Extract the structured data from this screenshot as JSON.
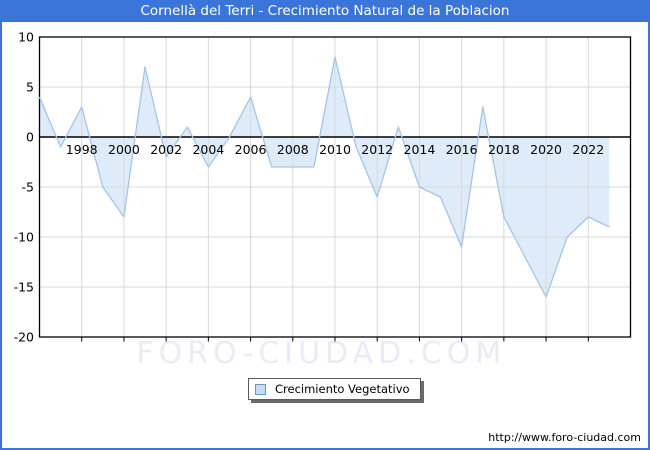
{
  "chart_data": {
    "type": "area",
    "title": "Cornellà del Terri - Crecimiento Natural de la Poblacion",
    "series_name": "Crecimiento Vegetativo",
    "x": [
      1996,
      1997,
      1998,
      1999,
      2000,
      2001,
      2002,
      2003,
      2004,
      2005,
      2006,
      2007,
      2008,
      2009,
      2010,
      2011,
      2012,
      2013,
      2014,
      2015,
      2016,
      2017,
      2018,
      2019,
      2020,
      2021,
      2022,
      2023
    ],
    "values": [
      4,
      -1,
      3,
      -5,
      -8,
      7,
      -2,
      1,
      -3,
      0,
      4,
      -3,
      -3,
      -3,
      8,
      -1,
      -6,
      1,
      -5,
      -6,
      -11,
      3,
      -8,
      -12,
      -16,
      -10,
      -8,
      -9
    ],
    "xlim": [
      1996,
      2024
    ],
    "ylim": [
      -20,
      10
    ],
    "yticks": [
      10,
      5,
      0,
      -5,
      -10,
      -15,
      -20
    ],
    "xticks": [
      1998,
      2000,
      2002,
      2004,
      2006,
      2008,
      2010,
      2012,
      2014,
      2016,
      2018,
      2020,
      2022
    ],
    "grid": true,
    "legend_position": "bottom-center",
    "xlabel": "",
    "ylabel": ""
  },
  "legend": {
    "label": "Crecimiento Vegetativo"
  },
  "watermark": "FORO-CIUDAD.COM",
  "footer_url": "http://www.foro-ciudad.com",
  "colors": {
    "titlebar": "#3A76D9",
    "line": "#A6C4E7",
    "fill": "#DEEBF9",
    "grid": "#D9D9D9",
    "zero_axis": "#000000",
    "watermark": "#E9EBF5"
  }
}
